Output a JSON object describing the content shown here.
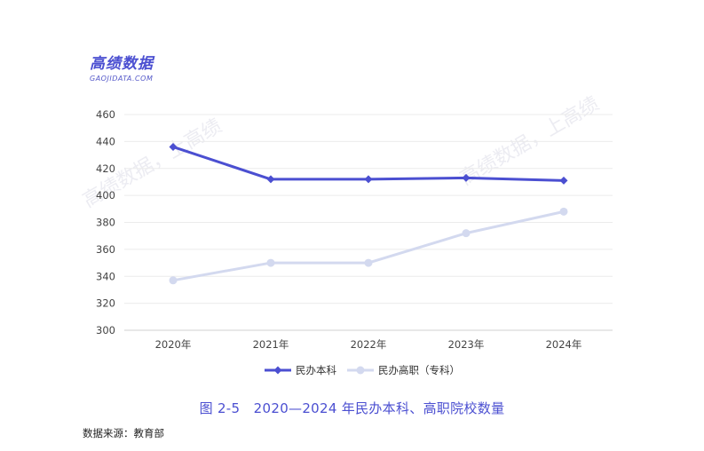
{
  "logo": {
    "name": "高绩数据",
    "domain": "GAOJIDATA.COM"
  },
  "watermark": "高绩数据，上高绩",
  "chart_data": {
    "type": "line",
    "categories": [
      "2020年",
      "2021年",
      "2022年",
      "2023年",
      "2024年"
    ],
    "series": [
      {
        "name": "民办本科",
        "values": [
          436,
          412,
          412,
          413,
          411
        ],
        "color": "#4b4fd1",
        "marker": "diamond"
      },
      {
        "name": "民办高职（专科）",
        "values": [
          337,
          350,
          350,
          372,
          388
        ],
        "color": "#d3d9ef",
        "marker": "circle"
      }
    ],
    "y_ticks": [
      300,
      320,
      340,
      360,
      380,
      400,
      420,
      440,
      460
    ],
    "ylim": [
      300,
      460
    ],
    "grid": true,
    "legend_position": "bottom"
  },
  "caption": "图 2-5　2020—2024 年民办本科、高职院校数量",
  "source": "数据来源：教育部"
}
